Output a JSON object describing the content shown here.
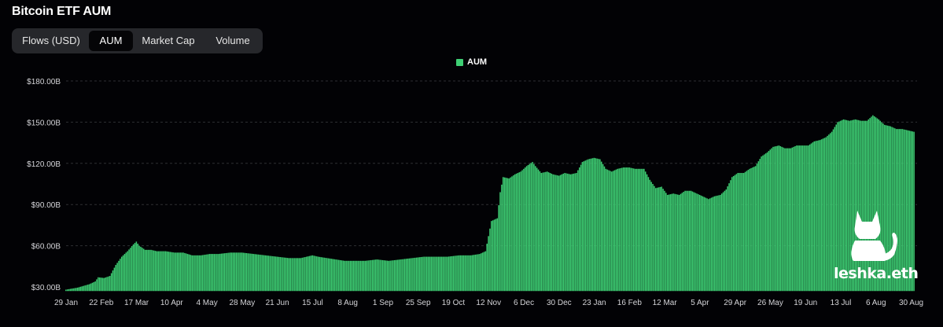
{
  "header": {
    "title": "Bitcoin ETF AUM"
  },
  "tabs": [
    {
      "label": "Flows (USD)",
      "active": false
    },
    {
      "label": "AUM",
      "active": true
    },
    {
      "label": "Market Cap",
      "active": false
    },
    {
      "label": "Volume",
      "active": false
    }
  ],
  "watermark": {
    "text": "leshka.eth",
    "icon": "cat-silhouette-icon"
  },
  "colors": {
    "bar": "#3ecf74",
    "background": "#020205",
    "grid": "#2e2f33"
  },
  "chart_data": {
    "type": "bar",
    "title": "",
    "xlabel": "",
    "ylabel": "",
    "ylim": [
      27,
      183
    ],
    "grid": true,
    "legend_position": "top-center",
    "series": [
      {
        "name": "AUM",
        "color": "#3ecf74"
      }
    ],
    "y_ticks": [
      "$30.00B",
      "$60.00B",
      "$90.00B",
      "$120.00B",
      "$150.00B",
      "$180.00B"
    ],
    "y_tick_values": [
      30,
      60,
      90,
      120,
      150,
      180
    ],
    "x_ticks": [
      "29 Jan",
      "22 Feb",
      "17 Mar",
      "10 Apr",
      "4 May",
      "28 May",
      "21 Jun",
      "15 Jul",
      "8 Aug",
      "1 Sep",
      "25 Sep",
      "19 Oct",
      "12 Nov",
      "6 Dec",
      "30 Dec",
      "23 Jan",
      "16 Feb",
      "12 Mar",
      "5 Apr",
      "29 Apr",
      "26 May",
      "19 Jun",
      "13 Jul",
      "6 Aug",
      "30 Aug"
    ],
    "x_tick_day_index": [
      0,
      24,
      48,
      72,
      96,
      120,
      144,
      168,
      192,
      216,
      240,
      264,
      288,
      312,
      336,
      360,
      384,
      408,
      432,
      456,
      480,
      504,
      528,
      552,
      576
    ],
    "day_index_range": [
      0,
      580
    ],
    "keypoints": [
      [
        0,
        28
      ],
      [
        8,
        29.5
      ],
      [
        16,
        32
      ],
      [
        20,
        34
      ],
      [
        22,
        37
      ],
      [
        26,
        36.5
      ],
      [
        30,
        38
      ],
      [
        34,
        46
      ],
      [
        38,
        52
      ],
      [
        42,
        56
      ],
      [
        46,
        61
      ],
      [
        48,
        63
      ],
      [
        50,
        60
      ],
      [
        54,
        57
      ],
      [
        58,
        57
      ],
      [
        62,
        56
      ],
      [
        68,
        56
      ],
      [
        74,
        55
      ],
      [
        80,
        55
      ],
      [
        86,
        53
      ],
      [
        92,
        53
      ],
      [
        98,
        54
      ],
      [
        104,
        54
      ],
      [
        112,
        55
      ],
      [
        120,
        55
      ],
      [
        128,
        54
      ],
      [
        136,
        53
      ],
      [
        144,
        52
      ],
      [
        152,
        51
      ],
      [
        160,
        51
      ],
      [
        168,
        53
      ],
      [
        172,
        52
      ],
      [
        178,
        51
      ],
      [
        184,
        50
      ],
      [
        190,
        49
      ],
      [
        196,
        49
      ],
      [
        204,
        49
      ],
      [
        212,
        50
      ],
      [
        220,
        49
      ],
      [
        228,
        50
      ],
      [
        236,
        51
      ],
      [
        244,
        52
      ],
      [
        252,
        52
      ],
      [
        260,
        52
      ],
      [
        268,
        53
      ],
      [
        276,
        53
      ],
      [
        282,
        54
      ],
      [
        286,
        56
      ],
      [
        288,
        67
      ],
      [
        290,
        78
      ],
      [
        294,
        80
      ],
      [
        296,
        99
      ],
      [
        298,
        110
      ],
      [
        302,
        109
      ],
      [
        306,
        112
      ],
      [
        310,
        114
      ],
      [
        314,
        118
      ],
      [
        318,
        121
      ],
      [
        320,
        118
      ],
      [
        324,
        113
      ],
      [
        328,
        114
      ],
      [
        332,
        112
      ],
      [
        336,
        111
      ],
      [
        340,
        113
      ],
      [
        344,
        112
      ],
      [
        348,
        113
      ],
      [
        352,
        121
      ],
      [
        356,
        123
      ],
      [
        360,
        124
      ],
      [
        364,
        123
      ],
      [
        368,
        116
      ],
      [
        372,
        114
      ],
      [
        376,
        116
      ],
      [
        380,
        117
      ],
      [
        384,
        117
      ],
      [
        388,
        116
      ],
      [
        394,
        116
      ],
      [
        398,
        108
      ],
      [
        402,
        102
      ],
      [
        406,
        103
      ],
      [
        410,
        97
      ],
      [
        414,
        98
      ],
      [
        418,
        97
      ],
      [
        422,
        100
      ],
      [
        426,
        100
      ],
      [
        430,
        98
      ],
      [
        434,
        96
      ],
      [
        438,
        94
      ],
      [
        442,
        96
      ],
      [
        446,
        97
      ],
      [
        450,
        101
      ],
      [
        454,
        110
      ],
      [
        458,
        113
      ],
      [
        462,
        113
      ],
      [
        466,
        116
      ],
      [
        470,
        118
      ],
      [
        474,
        125
      ],
      [
        478,
        128
      ],
      [
        482,
        132
      ],
      [
        486,
        133
      ],
      [
        490,
        131
      ],
      [
        494,
        131
      ],
      [
        498,
        133
      ],
      [
        502,
        133
      ],
      [
        506,
        133
      ],
      [
        510,
        136
      ],
      [
        514,
        137
      ],
      [
        518,
        139
      ],
      [
        522,
        143
      ],
      [
        526,
        150
      ],
      [
        530,
        152
      ],
      [
        534,
        151
      ],
      [
        538,
        152
      ],
      [
        542,
        151
      ],
      [
        546,
        151
      ],
      [
        550,
        155
      ],
      [
        554,
        152
      ],
      [
        558,
        148
      ],
      [
        562,
        147
      ],
      [
        566,
        145
      ],
      [
        570,
        145
      ],
      [
        574,
        144
      ],
      [
        578,
        143
      ]
    ]
  }
}
